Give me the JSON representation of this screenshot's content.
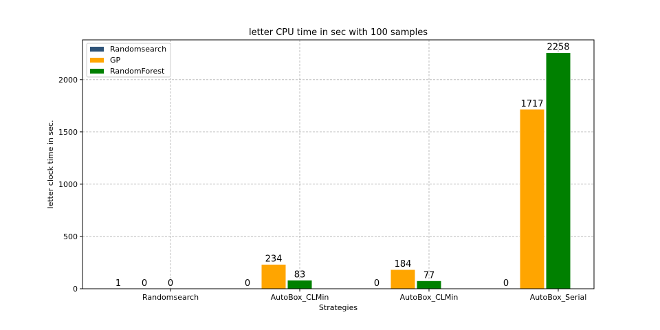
{
  "chart_data": {
    "type": "bar",
    "title": "letter CPU time in sec with 100 samples",
    "xlabel": "Strategies",
    "ylabel": "letter clock time in sec.",
    "categories": [
      "Randomsearch",
      "AutoBox_CLMin",
      "AutoBox_CLMin",
      "AutoBox_Serial"
    ],
    "series": [
      {
        "name": "Randomsearch",
        "color": "#2e5378",
        "values": [
          1,
          0,
          0,
          0
        ]
      },
      {
        "name": "GP",
        "color": "#ffa500",
        "values": [
          0,
          234,
          184,
          1717
        ]
      },
      {
        "name": "RandomForest",
        "color": "#008000",
        "values": [
          0,
          83,
          77,
          2258
        ]
      }
    ],
    "ylim": [
      0,
      2380
    ],
    "yticks": [
      0,
      500,
      1000,
      1500,
      2000
    ],
    "grid": true,
    "legend_position": "top-left"
  }
}
